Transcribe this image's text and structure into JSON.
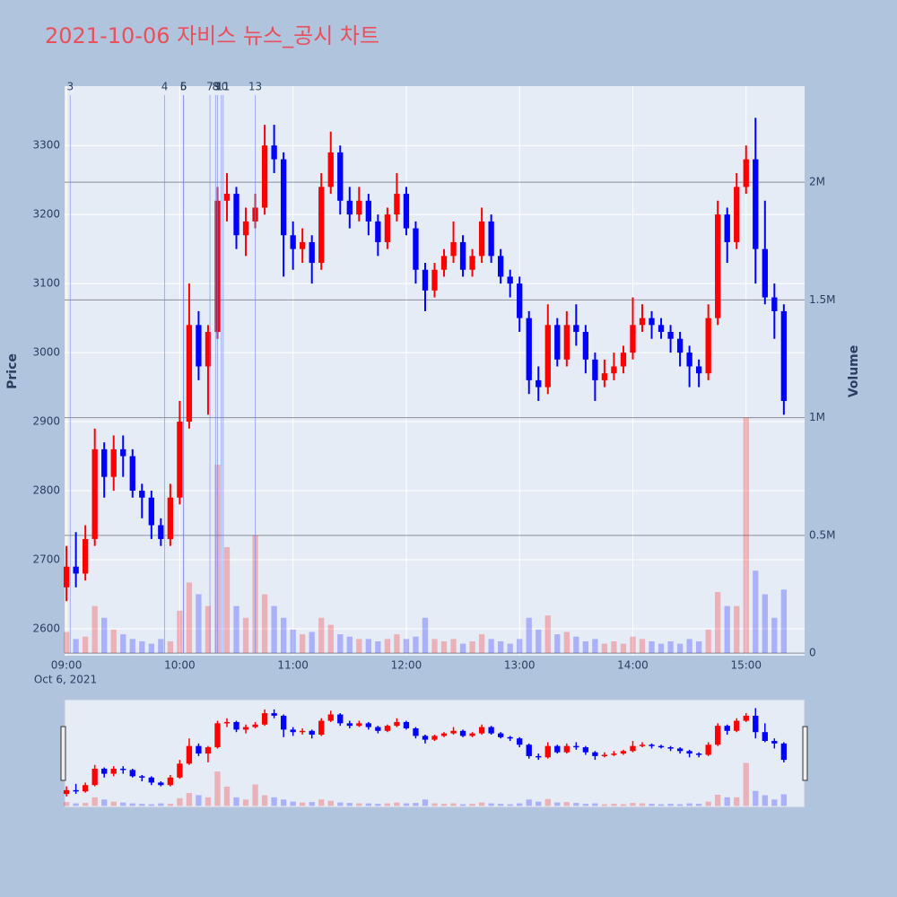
{
  "chart_data": {
    "type": "candlestick",
    "title": "2021-10-06 자비스 뉴스_공시 차트",
    "ylabel": "Price",
    "y2label": "Volume",
    "x_date_label": "Oct 6, 2021",
    "up_color": "#ff0000",
    "down_color": "#0000ff",
    "xlim": [
      "08:59",
      "15:31"
    ],
    "xticks": [
      "09:00",
      "10:00",
      "11:00",
      "12:00",
      "13:00",
      "14:00",
      "15:00"
    ],
    "ylim": [
      2561,
      3386
    ],
    "yticks": [
      2600,
      2700,
      2800,
      2900,
      3000,
      3100,
      3200,
      3300
    ],
    "y2lim": [
      -11000,
      2408000
    ],
    "y2ticks": [
      0,
      {
        "value": 500000,
        "label": "0.5M"
      },
      {
        "value": 1000000,
        "label": "1M"
      },
      {
        "value": 1500000,
        "label": "1.5M"
      },
      {
        "value": 2000000,
        "label": "2M"
      }
    ],
    "grid": true,
    "range_slider": true,
    "markers": [
      {
        "label": 3,
        "x": "09:02"
      },
      {
        "label": 4,
        "x": "09:52"
      },
      {
        "label": 5,
        "x": "10:02"
      },
      {
        "label": 6,
        "x": "10:02"
      },
      {
        "label": 7,
        "x": "10:16"
      },
      {
        "label": 8,
        "x": "10:19"
      },
      {
        "label": 9,
        "x": "10:20"
      },
      {
        "label": 10,
        "x": "10:22"
      },
      {
        "label": 11,
        "x": "10:23"
      },
      {
        "label": 13,
        "x": "10:40"
      }
    ],
    "x": [
      "09:00",
      "09:05",
      "09:10",
      "09:15",
      "09:20",
      "09:25",
      "09:30",
      "09:35",
      "09:40",
      "09:45",
      "09:50",
      "09:55",
      "10:00",
      "10:05",
      "10:10",
      "10:15",
      "10:20",
      "10:25",
      "10:30",
      "10:35",
      "10:40",
      "10:45",
      "10:50",
      "10:55",
      "11:00",
      "11:05",
      "11:10",
      "11:15",
      "11:20",
      "11:25",
      "11:30",
      "11:35",
      "11:40",
      "11:45",
      "11:50",
      "11:55",
      "12:00",
      "12:05",
      "12:10",
      "12:15",
      "12:20",
      "12:25",
      "12:30",
      "12:35",
      "12:40",
      "12:45",
      "12:50",
      "12:55",
      "13:00",
      "13:05",
      "13:10",
      "13:15",
      "13:20",
      "13:25",
      "13:30",
      "13:35",
      "13:40",
      "13:45",
      "13:50",
      "13:55",
      "14:00",
      "14:05",
      "14:10",
      "14:15",
      "14:20",
      "14:25",
      "14:30",
      "14:35",
      "14:40",
      "14:45",
      "14:50",
      "14:55",
      "15:00",
      "15:05",
      "15:10",
      "15:15",
      "15:20"
    ],
    "open": [
      2660,
      2690,
      2680,
      2730,
      2860,
      2820,
      2860,
      2850,
      2800,
      2790,
      2750,
      2730,
      2790,
      2900,
      3040,
      2980,
      3030,
      3220,
      3230,
      3170,
      3190,
      3210,
      3300,
      3280,
      3170,
      3150,
      3160,
      3130,
      3240,
      3290,
      3220,
      3200,
      3220,
      3190,
      3160,
      3200,
      3230,
      3180,
      3120,
      3090,
      3120,
      3140,
      3160,
      3120,
      3140,
      3190,
      3140,
      3110,
      3100,
      3050,
      2960,
      2950,
      3040,
      2990,
      3040,
      3030,
      2990,
      2960,
      2970,
      2980,
      3000,
      3040,
      3050,
      3040,
      3030,
      3020,
      3000,
      2980,
      2970,
      3050,
      3200,
      3160,
      3240,
      3280,
      3150,
      3080,
      3060
    ],
    "high": [
      2720,
      2740,
      2750,
      2890,
      2870,
      2880,
      2880,
      2860,
      2810,
      2800,
      2760,
      2810,
      2930,
      3100,
      3060,
      3040,
      3240,
      3260,
      3240,
      3210,
      3230,
      3330,
      3330,
      3290,
      3190,
      3180,
      3170,
      3260,
      3320,
      3300,
      3240,
      3240,
      3230,
      3200,
      3210,
      3260,
      3240,
      3190,
      3130,
      3130,
      3150,
      3190,
      3170,
      3150,
      3210,
      3200,
      3150,
      3120,
      3110,
      3060,
      2980,
      3070,
      3050,
      3060,
      3070,
      3040,
      3000,
      2990,
      3000,
      3010,
      3080,
      3070,
      3060,
      3050,
      3040,
      3030,
      3010,
      2990,
      3070,
      3220,
      3210,
      3260,
      3300,
      3340,
      3220,
      3100,
      3070
    ],
    "low": [
      2640,
      2660,
      2670,
      2720,
      2790,
      2800,
      2820,
      2790,
      2760,
      2730,
      2720,
      2720,
      2780,
      2890,
      2960,
      2910,
      3020,
      3190,
      3150,
      3140,
      3180,
      3200,
      3260,
      3110,
      3120,
      3130,
      3100,
      3120,
      3230,
      3200,
      3180,
      3190,
      3170,
      3140,
      3150,
      3190,
      3170,
      3100,
      3060,
      3080,
      3110,
      3130,
      3110,
      3110,
      3130,
      3130,
      3100,
      3080,
      3030,
      2940,
      2930,
      2940,
      2980,
      2980,
      3010,
      2970,
      2930,
      2950,
      2960,
      2970,
      2990,
      3030,
      3020,
      3020,
      3000,
      2980,
      2950,
      2950,
      2960,
      3040,
      3130,
      3150,
      3230,
      3100,
      3070,
      3020,
      2910
    ],
    "close": [
      2690,
      2680,
      2730,
      2860,
      2820,
      2860,
      2850,
      2800,
      2790,
      2750,
      2730,
      2790,
      2900,
      3040,
      2980,
      3030,
      3220,
      3230,
      3170,
      3190,
      3210,
      3300,
      3280,
      3170,
      3150,
      3160,
      3130,
      3240,
      3290,
      3220,
      3200,
      3220,
      3190,
      3160,
      3200,
      3230,
      3180,
      3120,
      3090,
      3120,
      3140,
      3160,
      3120,
      3140,
      3190,
      3140,
      3110,
      3100,
      3050,
      2960,
      2950,
      3040,
      2990,
      3040,
      3030,
      2990,
      2960,
      2970,
      2980,
      3000,
      3040,
      3050,
      3040,
      3030,
      3020,
      3000,
      2980,
      2970,
      3050,
      3200,
      3160,
      3240,
      3280,
      3150,
      3080,
      3060,
      2930
    ],
    "volume": [
      90000,
      60000,
      70000,
      200000,
      150000,
      100000,
      80000,
      60000,
      50000,
      40000,
      60000,
      50000,
      180000,
      300000,
      250000,
      200000,
      800000,
      450000,
      200000,
      150000,
      500000,
      250000,
      200000,
      150000,
      100000,
      80000,
      90000,
      150000,
      120000,
      80000,
      70000,
      60000,
      60000,
      50000,
      60000,
      80000,
      60000,
      70000,
      150000,
      60000,
      50000,
      60000,
      40000,
      50000,
      80000,
      60000,
      50000,
      40000,
      60000,
      150000,
      100000,
      160000,
      80000,
      90000,
      70000,
      50000,
      60000,
      40000,
      50000,
      40000,
      70000,
      60000,
      50000,
      40000,
      50000,
      40000,
      60000,
      50000,
      100000,
      260000,
      200000,
      200000,
      1000000,
      350000,
      250000,
      150000,
      270000
    ]
  }
}
